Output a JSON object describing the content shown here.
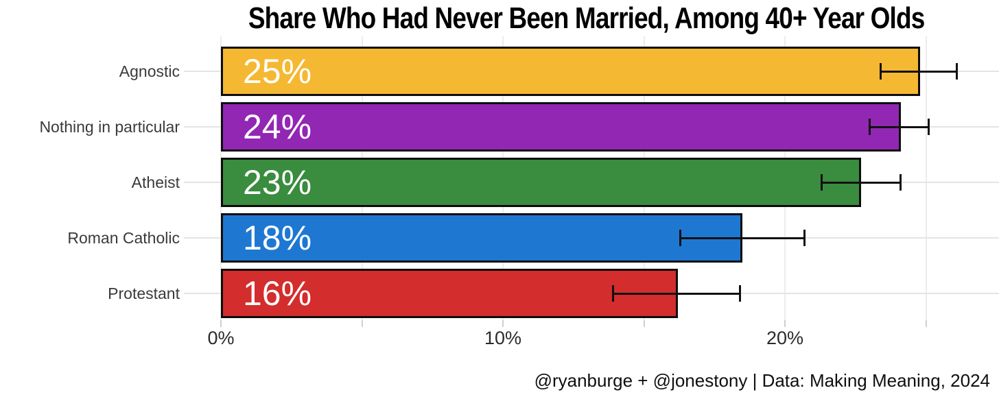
{
  "title": "Share Who Had Never Been Married, Among 40+ Year Olds",
  "footer": "@ryanburge + @jonestony | Data: Making Meaning, 2024",
  "chart_data": {
    "type": "bar",
    "orientation": "horizontal",
    "title": "Share Who Had Never Been Married, Among 40+ Year Olds",
    "categories": [
      "Agnostic",
      "Nothing in particular",
      "Atheist",
      "Roman Catholic",
      "Protestant"
    ],
    "values": [
      25,
      24,
      23,
      18,
      16
    ],
    "value_labels": [
      "25%",
      "24%",
      "23%",
      "18%",
      "16%"
    ],
    "bar_lengths_pct": [
      24.8,
      24.1,
      22.7,
      18.5,
      16.2
    ],
    "error_low_pct": [
      23.4,
      23.0,
      21.3,
      16.3,
      13.9
    ],
    "error_high_pct": [
      26.1,
      25.1,
      24.1,
      20.7,
      18.4
    ],
    "bar_colors": [
      "#F5B832",
      "#9227B3",
      "#3A8C3E",
      "#1E78D2",
      "#D32D2D"
    ],
    "bar_border_color": "#0D0D0D",
    "error_bar_color": "#111111",
    "x_tick_labels": [
      {
        "value": 0,
        "label": "0%"
      },
      {
        "value": 10,
        "label": "10%"
      },
      {
        "value": 20,
        "label": "20%"
      }
    ],
    "minor_tick_step_pct": 5,
    "xlim": [
      0,
      27.6
    ],
    "xlabel": "",
    "ylabel": "",
    "grid": "both",
    "legend": "none",
    "background": "#FFFFFF"
  }
}
